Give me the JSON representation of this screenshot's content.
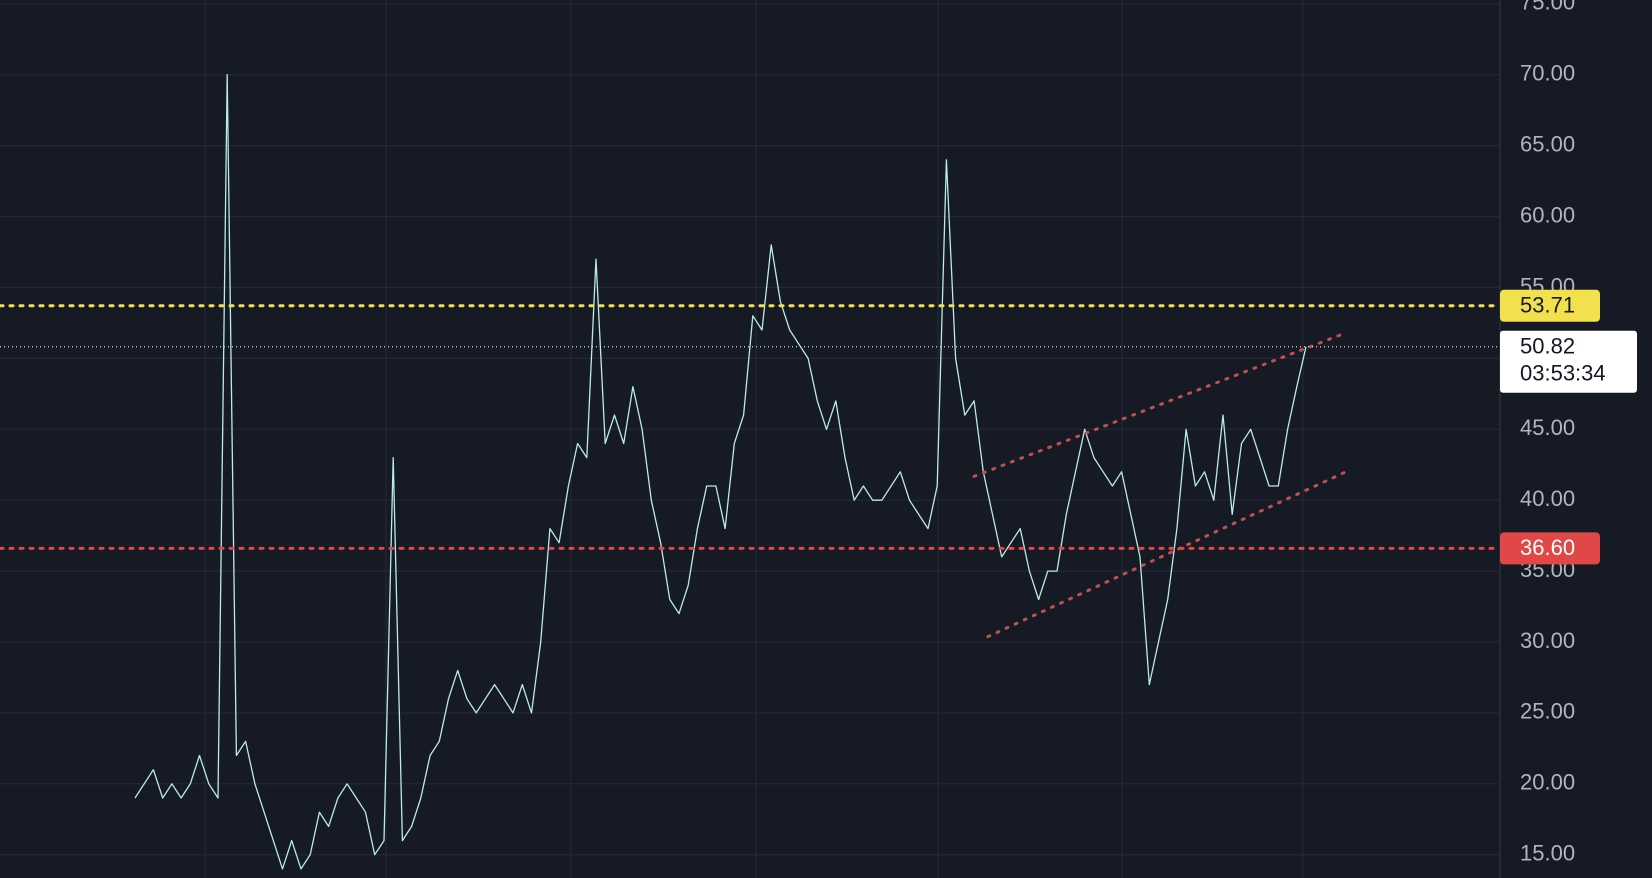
{
  "chart_data": {
    "type": "line",
    "ylim": [
      13.36,
      75.27
    ],
    "yticks": [
      {
        "value": 15,
        "label": "15.00"
      },
      {
        "value": 20,
        "label": "20.00"
      },
      {
        "value": 25,
        "label": "25.00"
      },
      {
        "value": 30,
        "label": "30.00"
      },
      {
        "value": 35,
        "label": "35.00"
      },
      {
        "value": 40,
        "label": "40.00"
      },
      {
        "value": 45,
        "label": "45.00"
      },
      {
        "value": 50,
        "label": "50.00"
      },
      {
        "value": 55,
        "label": "55.00"
      },
      {
        "value": 60,
        "label": "60.00"
      },
      {
        "value": 65,
        "label": "65.00"
      },
      {
        "value": 70,
        "label": "70.00"
      },
      {
        "value": 75,
        "label": "75.00"
      }
    ],
    "grid": true,
    "color": "#b9ece6",
    "values": [
      19,
      20,
      21,
      19,
      20,
      19,
      20,
      22,
      20,
      19,
      70,
      22,
      23,
      20,
      18,
      16,
      14,
      16,
      14,
      15,
      18,
      17,
      19,
      20,
      19,
      18,
      15,
      16,
      43,
      16,
      17,
      19,
      22,
      23,
      26,
      28,
      26,
      25,
      26,
      27,
      26,
      25,
      27,
      25,
      30,
      38,
      37,
      41,
      44,
      43,
      57,
      44,
      46,
      44,
      48,
      45,
      40,
      37,
      33,
      32,
      34,
      38,
      41,
      41,
      38,
      44,
      46,
      53,
      52,
      58,
      54,
      52,
      51,
      50,
      47,
      45,
      47,
      43,
      40,
      41,
      40,
      40,
      41,
      42,
      40,
      39,
      38,
      41,
      64,
      50,
      46,
      47,
      42,
      39,
      36,
      37,
      38,
      35,
      33,
      35,
      35,
      39,
      42,
      45,
      43,
      42,
      41,
      42,
      39,
      36,
      27,
      30,
      33,
      38,
      45,
      41,
      42,
      40,
      46,
      39,
      44,
      45,
      43,
      41,
      41,
      45,
      48,
      50.82
    ],
    "price_lines": [
      {
        "value": 53.71,
        "label": "53.71",
        "color": "#f2e14c"
      },
      {
        "value": 36.6,
        "label": "36.60",
        "color": "#e04848"
      }
    ],
    "last_price": 50.82,
    "countdown": "03:53:34",
    "channel_lines": [
      {
        "x": [
          91,
          131
        ],
        "values": [
          41.68,
          51.72
        ],
        "color": "#c0504d"
      },
      {
        "x": [
          92.5,
          131.5
        ],
        "values": [
          30.38,
          42.05
        ],
        "color": "#c0504d"
      }
    ]
  }
}
